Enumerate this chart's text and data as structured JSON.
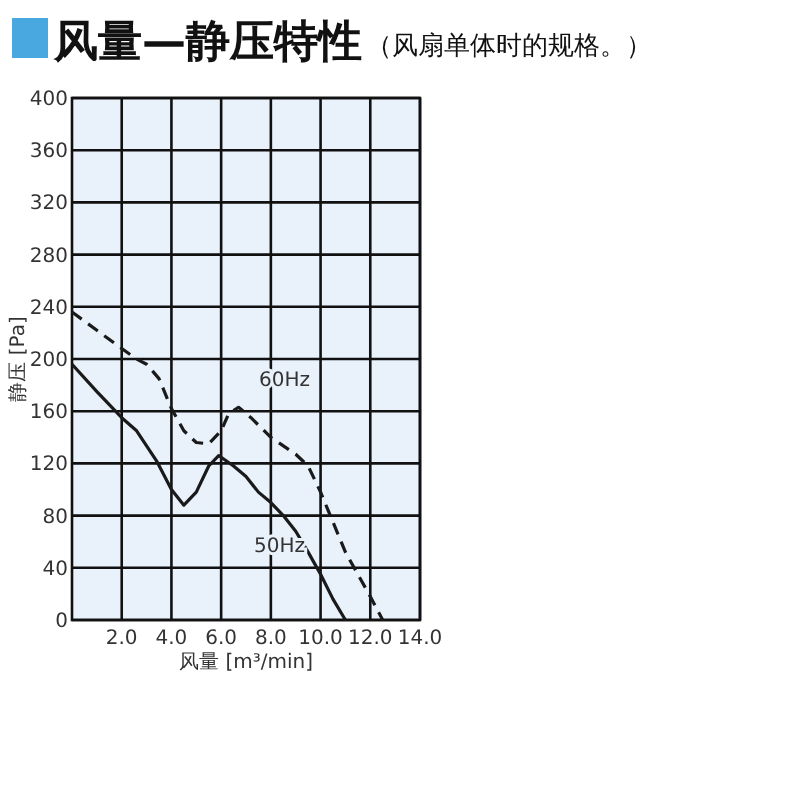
{
  "chart_data": {
    "type": "line",
    "title": "风量—静压特性",
    "subtitle": "（风扇单体时的规格。）",
    "xlabel": "风量 [m³/min]",
    "ylabel": "静压 [Pa]",
    "xlim": [
      0,
      14
    ],
    "ylim": [
      0,
      400
    ],
    "xticks": [
      {
        "value": 2,
        "label": "2.0"
      },
      {
        "value": 4,
        "label": "4.0"
      },
      {
        "value": 6,
        "label": "6.0"
      },
      {
        "value": 8,
        "label": "8.0"
      },
      {
        "value": 10,
        "label": "10.0"
      },
      {
        "value": 12,
        "label": "12.0"
      },
      {
        "value": 14,
        "label": "14.0"
      }
    ],
    "yticks": [
      0,
      40,
      80,
      120,
      160,
      200,
      240,
      280,
      320,
      360,
      400
    ],
    "grid": true,
    "series": [
      {
        "name": "50Hz",
        "color": "#1a1a1a",
        "line_style": "solid",
        "x": [
          0,
          1,
          2,
          2.6,
          3.4,
          4,
          4.5,
          5,
          5.5,
          5.9,
          6.5,
          7,
          7.5,
          8,
          8.5,
          9,
          9.5,
          10,
          10.5,
          11
        ],
        "values": [
          196,
          175,
          155,
          145,
          122,
          100,
          88,
          98,
          118,
          126,
          118,
          110,
          98,
          90,
          80,
          68,
          52,
          35,
          16,
          0
        ]
      },
      {
        "name": "60Hz",
        "color": "#1a1a1a",
        "line_style": "dashed",
        "x": [
          0,
          1,
          2,
          2.6,
          3,
          3.5,
          4,
          4.5,
          5,
          5.5,
          6,
          6.3,
          6.7,
          7.2,
          8,
          9,
          9.5,
          10,
          10.5,
          11,
          11.5,
          12,
          12.5
        ],
        "values": [
          236,
          222,
          208,
          200,
          196,
          185,
          162,
          145,
          136,
          135,
          145,
          158,
          163,
          155,
          140,
          127,
          118,
          98,
          75,
          52,
          35,
          18,
          0
        ]
      }
    ]
  }
}
